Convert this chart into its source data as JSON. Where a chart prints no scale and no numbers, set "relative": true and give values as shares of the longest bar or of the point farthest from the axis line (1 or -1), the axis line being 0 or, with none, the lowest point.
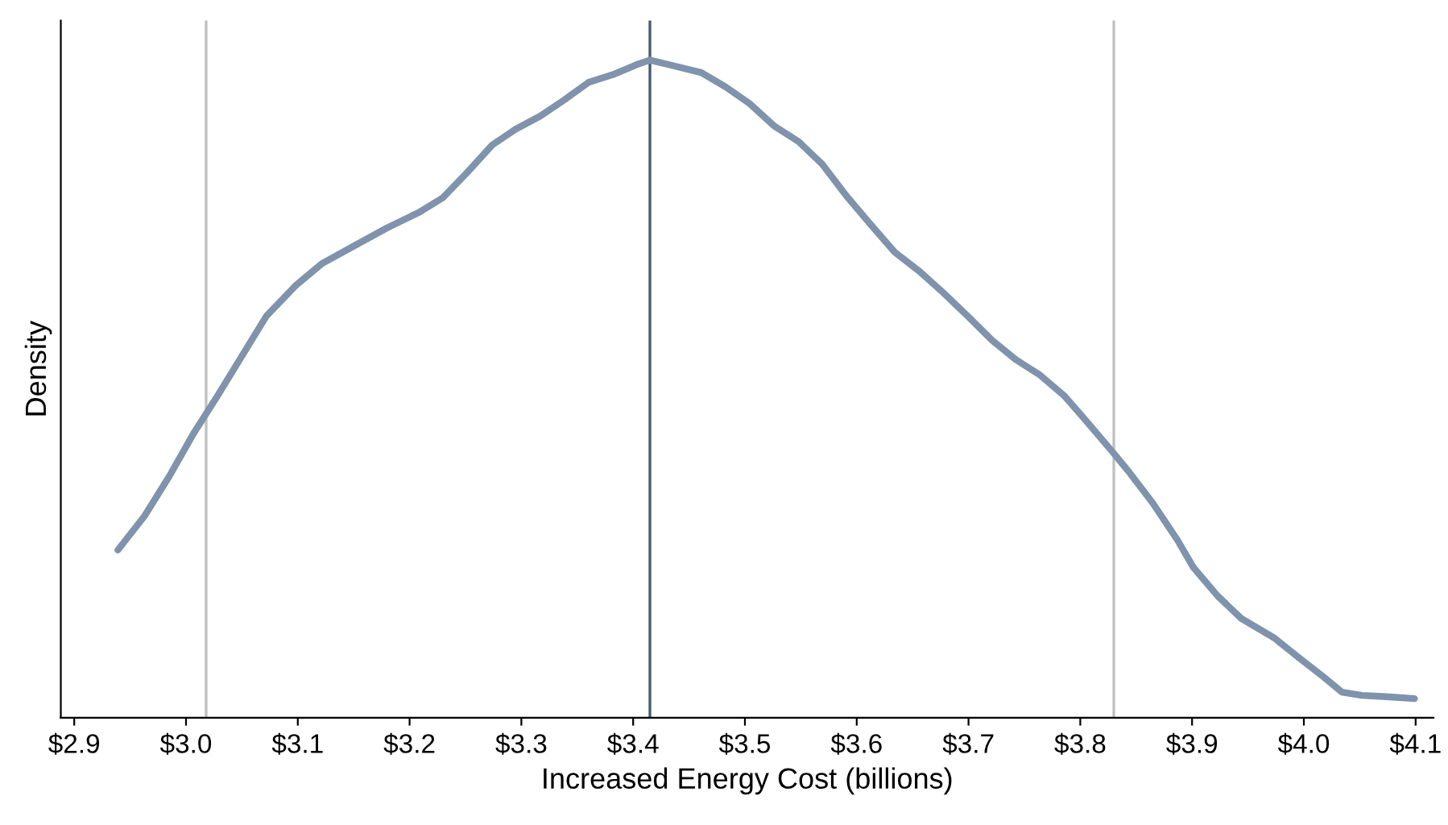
{
  "chart_data": {
    "type": "line",
    "relative": true,
    "xlabel": "Increased Energy Cost (billions)",
    "ylabel": "Density",
    "xlim": [
      2.888,
      4.116
    ],
    "xticks": [
      {
        "value": 2.9,
        "label": "$2.9"
      },
      {
        "value": 3.0,
        "label": "$3.0"
      },
      {
        "value": 3.1,
        "label": "$3.1"
      },
      {
        "value": 3.2,
        "label": "$3.2"
      },
      {
        "value": 3.3,
        "label": "$3.3"
      },
      {
        "value": 3.4,
        "label": "$3.4"
      },
      {
        "value": 3.5,
        "label": "$3.5"
      },
      {
        "value": 3.6,
        "label": "$3.6"
      },
      {
        "value": 3.7,
        "label": "$3.7"
      },
      {
        "value": 3.8,
        "label": "$3.8"
      },
      {
        "value": 3.9,
        "label": "$3.9"
      },
      {
        "value": 4.0,
        "label": "$4.0"
      },
      {
        "value": 4.1,
        "label": "$4.1"
      }
    ],
    "tick_labels": "x",
    "grid": false,
    "legend": false,
    "marker": "none",
    "line_style": "solid",
    "ref_lines": [
      {
        "axis": "x",
        "value": 3.018,
        "color": "#c0c0c0"
      },
      {
        "axis": "x",
        "value": 3.415,
        "color": "#4a5a6e"
      },
      {
        "axis": "x",
        "value": 3.83,
        "color": "#c0c0c0"
      }
    ],
    "series": [
      {
        "color": "#7f93ac",
        "x": [
          2.939,
          2.963,
          2.985,
          3.007,
          3.028,
          3.05,
          3.072,
          3.098,
          3.122,
          3.151,
          3.18,
          3.209,
          3.23,
          3.252,
          3.274,
          3.295,
          3.317,
          3.338,
          3.36,
          3.382,
          3.403,
          3.415,
          3.432,
          3.461,
          3.483,
          3.504,
          3.526,
          3.548,
          3.569,
          3.591,
          3.613,
          3.634,
          3.656,
          3.677,
          3.699,
          3.721,
          3.742,
          3.764,
          3.786,
          3.807,
          3.829,
          3.843,
          3.865,
          3.887,
          3.901,
          3.923,
          3.944,
          3.973,
          3.995,
          4.017,
          4.034,
          4.052,
          4.074,
          4.099
        ],
        "values": [
          0.255,
          0.307,
          0.367,
          0.433,
          0.489,
          0.55,
          0.611,
          0.657,
          0.691,
          0.718,
          0.745,
          0.769,
          0.791,
          0.83,
          0.871,
          0.895,
          0.915,
          0.939,
          0.966,
          0.978,
          0.993,
          1.0,
          0.993,
          0.981,
          0.959,
          0.934,
          0.9,
          0.876,
          0.842,
          0.793,
          0.749,
          0.708,
          0.679,
          0.647,
          0.611,
          0.574,
          0.545,
          0.521,
          0.489,
          0.448,
          0.404,
          0.375,
          0.326,
          0.27,
          0.229,
          0.185,
          0.151,
          0.122,
          0.092,
          0.063,
          0.039,
          0.034,
          0.032,
          0.029
        ]
      }
    ]
  }
}
